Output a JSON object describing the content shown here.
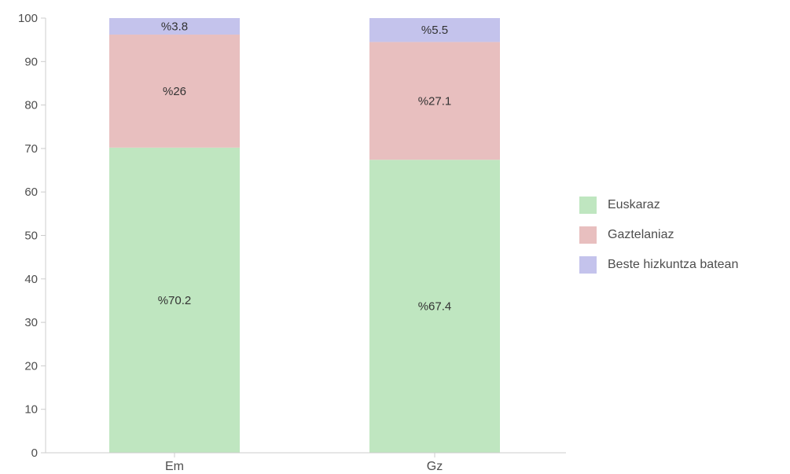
{
  "chart_data": {
    "type": "bar",
    "stacked": true,
    "categories": [
      "Em",
      "Gz"
    ],
    "series": [
      {
        "name": "Euskaraz",
        "values": [
          70.2,
          67.4
        ],
        "labels": [
          "%70.2",
          "%67.4"
        ],
        "color": "#bfe6c0"
      },
      {
        "name": "Gaztelaniaz",
        "values": [
          26,
          27.1
        ],
        "labels": [
          "%26",
          "%27.1"
        ],
        "color": "#e8bfbf"
      },
      {
        "name": "Beste hizkuntza batean",
        "values": [
          3.8,
          5.5
        ],
        "labels": [
          "%3.8",
          "%5.5"
        ],
        "color": "#c4c3ec"
      }
    ],
    "ylim": [
      0,
      100
    ],
    "yticks": [
      "0",
      "10",
      "20",
      "30",
      "40",
      "50",
      "60",
      "70",
      "80",
      "90",
      "100"
    ],
    "grid": false,
    "legend_position": "right"
  }
}
